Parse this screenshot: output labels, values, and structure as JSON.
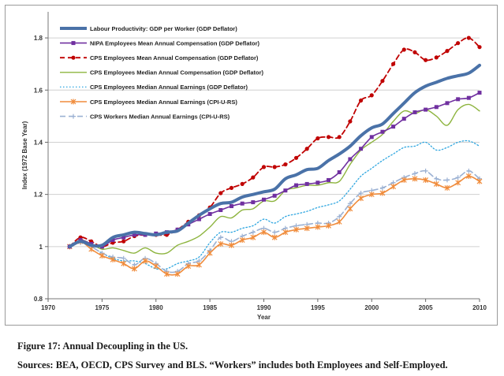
{
  "chart_data": {
    "type": "line",
    "title": "",
    "xlabel": "Year",
    "ylabel": "Index (1972 Base Year)",
    "xlim": [
      1970,
      2010
    ],
    "ylim": [
      0.8,
      1.9
    ],
    "xticks": [
      1970,
      1975,
      1980,
      1985,
      1990,
      1995,
      2000,
      2005,
      2010
    ],
    "yticks": [
      0.8,
      1,
      1.2,
      1.4,
      1.6,
      1.8
    ],
    "ytick_labels": [
      "0.8",
      "1",
      "1.2",
      "1.4",
      "1.6",
      "1.8"
    ],
    "grid": "horizontal",
    "legend_position": "top-left",
    "x": [
      1972,
      1973,
      1974,
      1975,
      1976,
      1977,
      1978,
      1979,
      1980,
      1981,
      1982,
      1983,
      1984,
      1985,
      1986,
      1987,
      1988,
      1989,
      1990,
      1991,
      1992,
      1993,
      1994,
      1995,
      1996,
      1997,
      1998,
      1999,
      2000,
      2001,
      2002,
      2003,
      2004,
      2005,
      2006,
      2007,
      2008,
      2009,
      2010
    ],
    "series": [
      {
        "name": "Labour Productivity: GDP per Worker (GDP Deflator)",
        "color": "#4a72a8",
        "width": 4,
        "dash": "",
        "marker": "none",
        "values": [
          1.0,
          1.02,
          1.005,
          1.005,
          1.035,
          1.045,
          1.055,
          1.05,
          1.045,
          1.055,
          1.06,
          1.09,
          1.12,
          1.145,
          1.165,
          1.17,
          1.19,
          1.2,
          1.21,
          1.22,
          1.26,
          1.275,
          1.295,
          1.3,
          1.33,
          1.355,
          1.385,
          1.425,
          1.455,
          1.47,
          1.51,
          1.55,
          1.59,
          1.615,
          1.63,
          1.645,
          1.655,
          1.665,
          1.695
        ]
      },
      {
        "name": "NIPA Employees Mean Annual Compensation (GDP Deflator)",
        "color": "#7030a0",
        "width": 1.6,
        "dash": "",
        "marker": "square",
        "values": [
          1.0,
          1.025,
          1.01,
          1.0,
          1.025,
          1.035,
          1.045,
          1.045,
          1.05,
          1.055,
          1.065,
          1.085,
          1.105,
          1.125,
          1.14,
          1.155,
          1.165,
          1.17,
          1.18,
          1.195,
          1.215,
          1.235,
          1.24,
          1.245,
          1.255,
          1.285,
          1.335,
          1.375,
          1.42,
          1.44,
          1.46,
          1.49,
          1.515,
          1.525,
          1.535,
          1.55,
          1.565,
          1.57,
          1.59
        ]
      },
      {
        "name": "CPS Employees Mean Annual Compensation (GDP Deflator)",
        "color": "#c00000",
        "width": 1.8,
        "dash": "6,4",
        "marker": "circle",
        "values": [
          1.0,
          1.035,
          1.02,
          1.0,
          1.015,
          1.02,
          1.04,
          1.045,
          1.045,
          1.045,
          1.065,
          1.095,
          1.12,
          1.15,
          1.205,
          1.225,
          1.24,
          1.265,
          1.305,
          1.305,
          1.315,
          1.34,
          1.375,
          1.415,
          1.42,
          1.42,
          1.48,
          1.56,
          1.58,
          1.635,
          1.7,
          1.755,
          1.745,
          1.715,
          1.725,
          1.75,
          1.78,
          1.8,
          1.765
        ]
      },
      {
        "name": "CPS Employees Median Annual Compensation (GDP Deflator)",
        "color": "#8db43e",
        "width": 1.4,
        "dash": "",
        "marker": "none",
        "values": [
          1.0,
          1.025,
          1.01,
          0.99,
          0.995,
          0.985,
          0.975,
          0.995,
          0.975,
          0.975,
          1.005,
          1.02,
          1.04,
          1.075,
          1.115,
          1.11,
          1.14,
          1.145,
          1.175,
          1.175,
          1.215,
          1.225,
          1.235,
          1.235,
          1.245,
          1.25,
          1.315,
          1.37,
          1.4,
          1.43,
          1.48,
          1.52,
          1.51,
          1.525,
          1.5,
          1.465,
          1.525,
          1.545,
          1.52
        ]
      },
      {
        "name": "CPS Employees Median Annual Earnings (GDP Deflator)",
        "color": "#2ea6e0",
        "width": 1.3,
        "dash": "1.5,2.5",
        "marker": "none",
        "values": [
          1.0,
          1.02,
          1.0,
          0.975,
          0.955,
          0.945,
          0.945,
          0.935,
          0.915,
          0.915,
          0.935,
          0.945,
          0.96,
          1.015,
          1.055,
          1.055,
          1.07,
          1.08,
          1.105,
          1.09,
          1.115,
          1.125,
          1.135,
          1.15,
          1.16,
          1.175,
          1.22,
          1.27,
          1.3,
          1.33,
          1.355,
          1.38,
          1.385,
          1.4,
          1.37,
          1.38,
          1.4,
          1.405,
          1.385
        ]
      },
      {
        "name": "CPS Employees Median Annual Earnings (CPI-U-RS)",
        "color": "#f08c3c",
        "width": 1.6,
        "dash": "",
        "marker": "star",
        "values": [
          1.0,
          1.02,
          0.99,
          0.965,
          0.95,
          0.935,
          0.915,
          0.945,
          0.925,
          0.895,
          0.895,
          0.925,
          0.93,
          0.975,
          1.01,
          1.005,
          1.025,
          1.035,
          1.055,
          1.035,
          1.055,
          1.065,
          1.07,
          1.075,
          1.08,
          1.095,
          1.145,
          1.185,
          1.2,
          1.205,
          1.23,
          1.255,
          1.26,
          1.255,
          1.24,
          1.225,
          1.245,
          1.27,
          1.25
        ]
      },
      {
        "name": "CPS Workers Median Annual Earnings (CPI-U-RS)",
        "color": "#9bb1d3",
        "width": 1.6,
        "dash": "7,4",
        "marker": "cross",
        "values": [
          1.0,
          1.015,
          1.0,
          0.975,
          0.96,
          0.955,
          0.93,
          0.955,
          0.935,
          0.905,
          0.905,
          0.935,
          0.945,
          0.985,
          1.035,
          1.02,
          1.04,
          1.055,
          1.07,
          1.055,
          1.07,
          1.08,
          1.085,
          1.09,
          1.09,
          1.115,
          1.165,
          1.205,
          1.215,
          1.225,
          1.245,
          1.265,
          1.28,
          1.29,
          1.26,
          1.255,
          1.265,
          1.29,
          1.26
        ]
      }
    ]
  },
  "caption": {
    "figure": "Figure 17: Annual Decoupling in the US.",
    "sources": "Sources: BEA, OECD, CPS Survey and BLS. “Workers” includes both Employees and Self-Employed."
  }
}
